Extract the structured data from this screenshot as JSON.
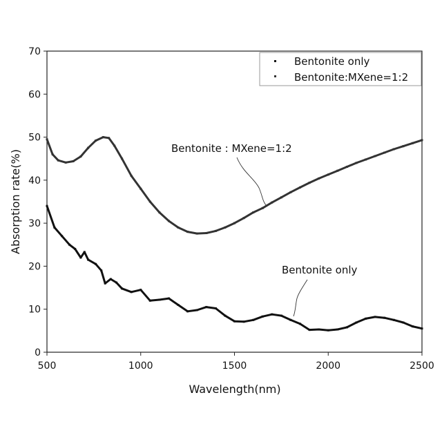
{
  "chart_data": {
    "type": "scatter",
    "xlabel": "Wavelength(nm)",
    "ylabel": "Absorption rate(%)",
    "xlim": [
      500,
      2500
    ],
    "ylim": [
      0,
      70
    ],
    "xticks": [
      "500",
      "1000",
      "1500",
      "2000",
      "2500"
    ],
    "yticks": [
      "0",
      "10",
      "20",
      "30",
      "40",
      "50",
      "60",
      "70"
    ],
    "grid": false,
    "legend_position": "top-right",
    "series": [
      {
        "name": "Bentonite only",
        "color": "#111111",
        "points": [
          [
            500,
            34
          ],
          [
            540,
            29
          ],
          [
            580,
            27
          ],
          [
            620,
            25
          ],
          [
            650,
            24
          ],
          [
            680,
            22
          ],
          [
            700,
            23.3
          ],
          [
            720,
            21.5
          ],
          [
            760,
            20.5
          ],
          [
            790,
            19
          ],
          [
            810,
            16
          ],
          [
            840,
            17
          ],
          [
            870,
            16.2
          ],
          [
            900,
            14.8
          ],
          [
            950,
            14
          ],
          [
            1000,
            14.5
          ],
          [
            1050,
            12
          ],
          [
            1100,
            12.2
          ],
          [
            1150,
            12.5
          ],
          [
            1200,
            11
          ],
          [
            1250,
            9.5
          ],
          [
            1300,
            9.8
          ],
          [
            1350,
            10.5
          ],
          [
            1400,
            10.2
          ],
          [
            1450,
            8.5
          ],
          [
            1500,
            7.2
          ],
          [
            1550,
            7.1
          ],
          [
            1600,
            7.5
          ],
          [
            1650,
            8.3
          ],
          [
            1700,
            8.8
          ],
          [
            1750,
            8.5
          ],
          [
            1800,
            7.5
          ],
          [
            1850,
            6.6
          ],
          [
            1900,
            5.2
          ],
          [
            1950,
            5.3
          ],
          [
            2000,
            5.1
          ],
          [
            2050,
            5.3
          ],
          [
            2100,
            5.8
          ],
          [
            2150,
            6.9
          ],
          [
            2200,
            7.8
          ],
          [
            2250,
            8.2
          ],
          [
            2300,
            8
          ],
          [
            2350,
            7.5
          ],
          [
            2400,
            6.9
          ],
          [
            2450,
            6
          ],
          [
            2500,
            5.5
          ]
        ]
      },
      {
        "name": "Bentonite:MXene=1:2",
        "color": "#333333",
        "points": [
          [
            500,
            49.5
          ],
          [
            530,
            46
          ],
          [
            560,
            44.6
          ],
          [
            600,
            44.1
          ],
          [
            640,
            44.4
          ],
          [
            680,
            45.5
          ],
          [
            720,
            47.5
          ],
          [
            760,
            49.2
          ],
          [
            800,
            50
          ],
          [
            830,
            49.8
          ],
          [
            860,
            48
          ],
          [
            900,
            45
          ],
          [
            950,
            41
          ],
          [
            1000,
            38
          ],
          [
            1050,
            35
          ],
          [
            1100,
            32.5
          ],
          [
            1150,
            30.5
          ],
          [
            1200,
            29
          ],
          [
            1250,
            28
          ],
          [
            1300,
            27.6
          ],
          [
            1350,
            27.7
          ],
          [
            1400,
            28.2
          ],
          [
            1450,
            29
          ],
          [
            1500,
            30
          ],
          [
            1550,
            31.2
          ],
          [
            1600,
            32.5
          ],
          [
            1650,
            33.5
          ],
          [
            1700,
            34.8
          ],
          [
            1750,
            36
          ],
          [
            1800,
            37.2
          ],
          [
            1850,
            38.3
          ],
          [
            1900,
            39.4
          ],
          [
            1950,
            40.4
          ],
          [
            2000,
            41.3
          ],
          [
            2050,
            42.2
          ],
          [
            2100,
            43.1
          ],
          [
            2150,
            44
          ],
          [
            2200,
            44.8
          ],
          [
            2250,
            45.6
          ],
          [
            2300,
            46.4
          ],
          [
            2350,
            47.2
          ],
          [
            2400,
            47.9
          ],
          [
            2450,
            48.6
          ],
          [
            2500,
            49.3
          ]
        ]
      }
    ],
    "annotations": [
      {
        "text": "Bentonite : MXene=1:2"
      },
      {
        "text": "Bentonite only"
      }
    ]
  }
}
